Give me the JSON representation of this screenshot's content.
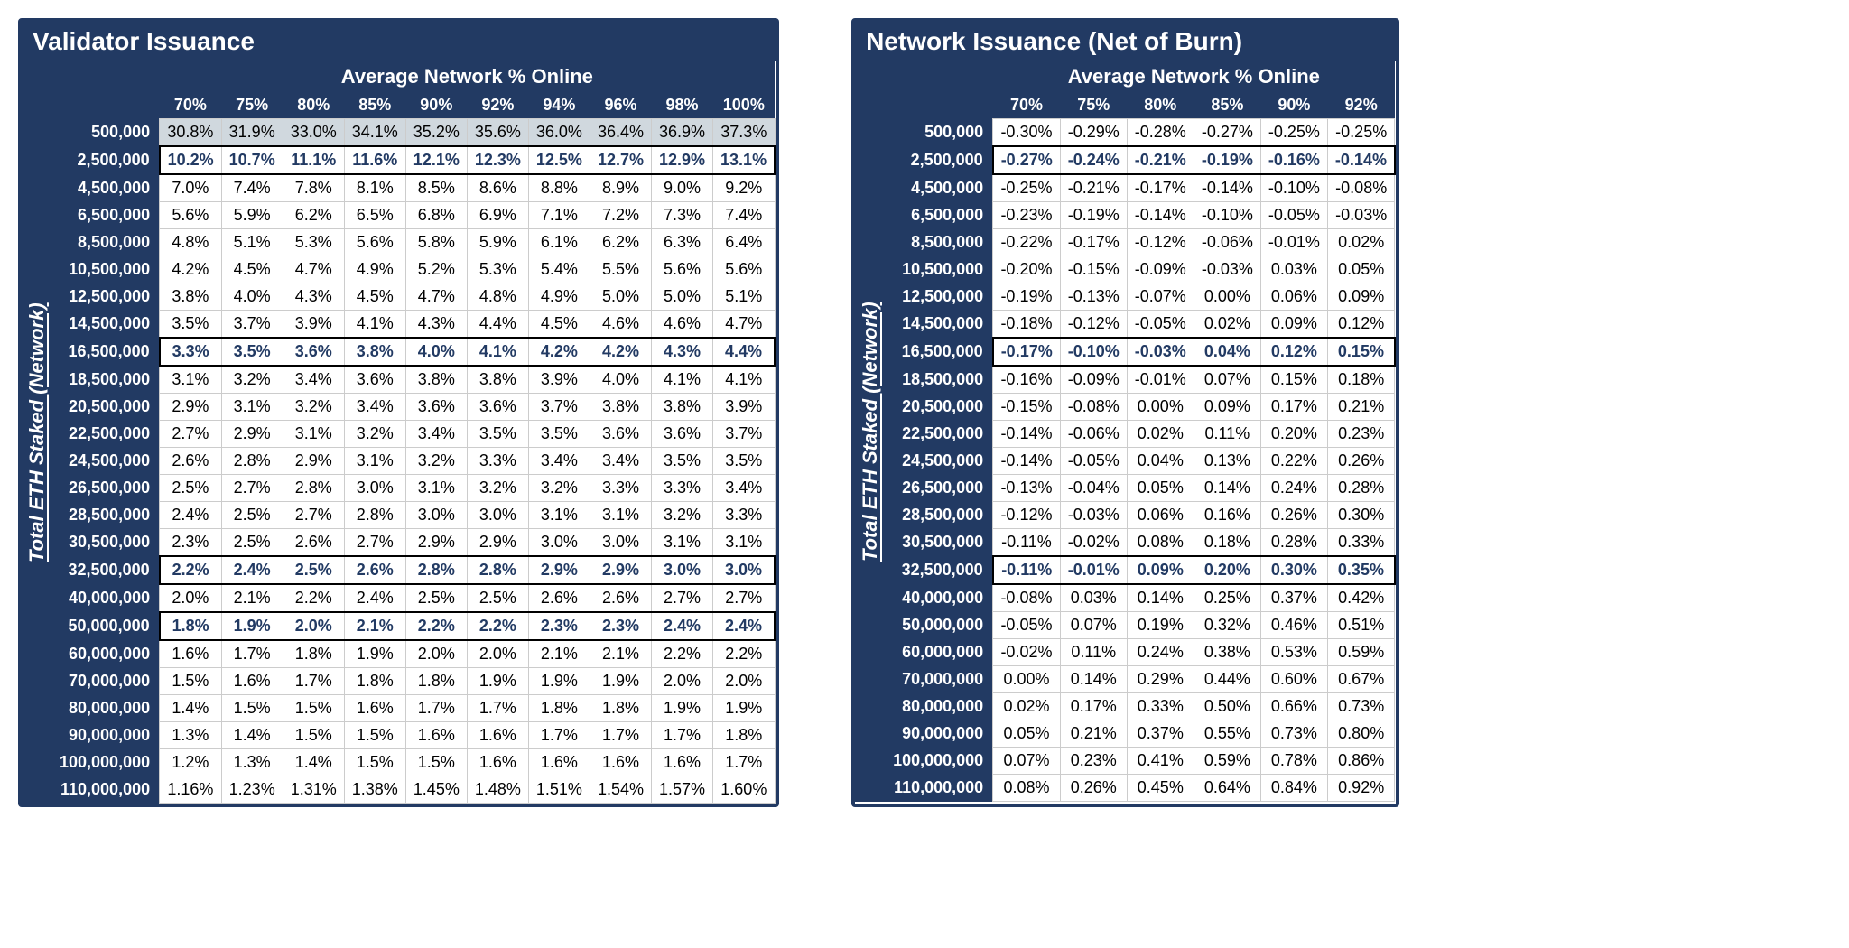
{
  "tables": [
    {
      "title": "Validator Issuance",
      "ylabel": "Total ETH Staked (Network)",
      "xlabel": "Average Network % Online",
      "x_headers": [
        "70%",
        "75%",
        "80%",
        "85%",
        "90%",
        "92%",
        "94%",
        "96%",
        "98%",
        "100%"
      ],
      "y_headers": [
        "500,000",
        "2,500,000",
        "4,500,000",
        "6,500,000",
        "8,500,000",
        "10,500,000",
        "12,500,000",
        "14,500,000",
        "16,500,000",
        "18,500,000",
        "20,500,000",
        "22,500,000",
        "24,500,000",
        "26,500,000",
        "28,500,000",
        "30,500,000",
        "32,500,000",
        "40,000,000",
        "50,000,000",
        "60,000,000",
        "70,000,000",
        "80,000,000",
        "90,000,000",
        "100,000,000",
        "110,000,000"
      ],
      "rows": [
        [
          "30.8%",
          "31.9%",
          "33.0%",
          "34.1%",
          "35.2%",
          "35.6%",
          "36.0%",
          "36.4%",
          "36.9%",
          "37.3%"
        ],
        [
          "10.2%",
          "10.7%",
          "11.1%",
          "11.6%",
          "12.1%",
          "12.3%",
          "12.5%",
          "12.7%",
          "12.9%",
          "13.1%"
        ],
        [
          "7.0%",
          "7.4%",
          "7.8%",
          "8.1%",
          "8.5%",
          "8.6%",
          "8.8%",
          "8.9%",
          "9.0%",
          "9.2%"
        ],
        [
          "5.6%",
          "5.9%",
          "6.2%",
          "6.5%",
          "6.8%",
          "6.9%",
          "7.1%",
          "7.2%",
          "7.3%",
          "7.4%"
        ],
        [
          "4.8%",
          "5.1%",
          "5.3%",
          "5.6%",
          "5.8%",
          "5.9%",
          "6.1%",
          "6.2%",
          "6.3%",
          "6.4%"
        ],
        [
          "4.2%",
          "4.5%",
          "4.7%",
          "4.9%",
          "5.2%",
          "5.3%",
          "5.4%",
          "5.5%",
          "5.6%",
          "5.6%"
        ],
        [
          "3.8%",
          "4.0%",
          "4.3%",
          "4.5%",
          "4.7%",
          "4.8%",
          "4.9%",
          "5.0%",
          "5.0%",
          "5.1%"
        ],
        [
          "3.5%",
          "3.7%",
          "3.9%",
          "4.1%",
          "4.3%",
          "4.4%",
          "4.5%",
          "4.6%",
          "4.6%",
          "4.7%"
        ],
        [
          "3.3%",
          "3.5%",
          "3.6%",
          "3.8%",
          "4.0%",
          "4.1%",
          "4.2%",
          "4.2%",
          "4.3%",
          "4.4%"
        ],
        [
          "3.1%",
          "3.2%",
          "3.4%",
          "3.6%",
          "3.8%",
          "3.8%",
          "3.9%",
          "4.0%",
          "4.1%",
          "4.1%"
        ],
        [
          "2.9%",
          "3.1%",
          "3.2%",
          "3.4%",
          "3.6%",
          "3.6%",
          "3.7%",
          "3.8%",
          "3.8%",
          "3.9%"
        ],
        [
          "2.7%",
          "2.9%",
          "3.1%",
          "3.2%",
          "3.4%",
          "3.5%",
          "3.5%",
          "3.6%",
          "3.6%",
          "3.7%"
        ],
        [
          "2.6%",
          "2.8%",
          "2.9%",
          "3.1%",
          "3.2%",
          "3.3%",
          "3.4%",
          "3.4%",
          "3.5%",
          "3.5%"
        ],
        [
          "2.5%",
          "2.7%",
          "2.8%",
          "3.0%",
          "3.1%",
          "3.2%",
          "3.2%",
          "3.3%",
          "3.3%",
          "3.4%"
        ],
        [
          "2.4%",
          "2.5%",
          "2.7%",
          "2.8%",
          "3.0%",
          "3.0%",
          "3.1%",
          "3.1%",
          "3.2%",
          "3.3%"
        ],
        [
          "2.3%",
          "2.5%",
          "2.6%",
          "2.7%",
          "2.9%",
          "2.9%",
          "3.0%",
          "3.0%",
          "3.1%",
          "3.1%"
        ],
        [
          "2.2%",
          "2.4%",
          "2.5%",
          "2.6%",
          "2.8%",
          "2.8%",
          "2.9%",
          "2.9%",
          "3.0%",
          "3.0%"
        ],
        [
          "2.0%",
          "2.1%",
          "2.2%",
          "2.4%",
          "2.5%",
          "2.5%",
          "2.6%",
          "2.6%",
          "2.7%",
          "2.7%"
        ],
        [
          "1.8%",
          "1.9%",
          "2.0%",
          "2.1%",
          "2.2%",
          "2.2%",
          "2.3%",
          "2.3%",
          "2.4%",
          "2.4%"
        ],
        [
          "1.6%",
          "1.7%",
          "1.8%",
          "1.9%",
          "2.0%",
          "2.0%",
          "2.1%",
          "2.1%",
          "2.2%",
          "2.2%"
        ],
        [
          "1.5%",
          "1.6%",
          "1.7%",
          "1.8%",
          "1.8%",
          "1.9%",
          "1.9%",
          "1.9%",
          "2.0%",
          "2.0%"
        ],
        [
          "1.4%",
          "1.5%",
          "1.5%",
          "1.6%",
          "1.7%",
          "1.7%",
          "1.8%",
          "1.8%",
          "1.9%",
          "1.9%"
        ],
        [
          "1.3%",
          "1.4%",
          "1.5%",
          "1.5%",
          "1.6%",
          "1.6%",
          "1.7%",
          "1.7%",
          "1.7%",
          "1.8%"
        ],
        [
          "1.2%",
          "1.3%",
          "1.4%",
          "1.5%",
          "1.5%",
          "1.6%",
          "1.6%",
          "1.6%",
          "1.6%",
          "1.7%"
        ],
        [
          "1.16%",
          "1.23%",
          "1.31%",
          "1.38%",
          "1.45%",
          "1.48%",
          "1.51%",
          "1.54%",
          "1.57%",
          "1.60%"
        ]
      ],
      "grey_rows": [
        0
      ],
      "bold_box_rows": [
        1,
        8,
        16,
        18
      ],
      "bold_top_border_after": [
        8,
        16,
        18
      ]
    },
    {
      "title": "Network Issuance (Net of Burn)",
      "ylabel": "Total ETH Staked (Network)",
      "xlabel": "Average Network % Online",
      "x_headers": [
        "70%",
        "75%",
        "80%",
        "85%",
        "90%",
        "92%"
      ],
      "y_headers": [
        "500,000",
        "2,500,000",
        "4,500,000",
        "6,500,000",
        "8,500,000",
        "10,500,000",
        "12,500,000",
        "14,500,000",
        "16,500,000",
        "18,500,000",
        "20,500,000",
        "22,500,000",
        "24,500,000",
        "26,500,000",
        "28,500,000",
        "30,500,000",
        "32,500,000",
        "40,000,000",
        "50,000,000",
        "60,000,000",
        "70,000,000",
        "80,000,000",
        "90,000,000",
        "100,000,000",
        "110,000,000"
      ],
      "rows": [
        [
          "-0.30%",
          "-0.29%",
          "-0.28%",
          "-0.27%",
          "-0.25%",
          "-0.25%"
        ],
        [
          "-0.27%",
          "-0.24%",
          "-0.21%",
          "-0.19%",
          "-0.16%",
          "-0.14%"
        ],
        [
          "-0.25%",
          "-0.21%",
          "-0.17%",
          "-0.14%",
          "-0.10%",
          "-0.08%"
        ],
        [
          "-0.23%",
          "-0.19%",
          "-0.14%",
          "-0.10%",
          "-0.05%",
          "-0.03%"
        ],
        [
          "-0.22%",
          "-0.17%",
          "-0.12%",
          "-0.06%",
          "-0.01%",
          "0.02%"
        ],
        [
          "-0.20%",
          "-0.15%",
          "-0.09%",
          "-0.03%",
          "0.03%",
          "0.05%"
        ],
        [
          "-0.19%",
          "-0.13%",
          "-0.07%",
          "0.00%",
          "0.06%",
          "0.09%"
        ],
        [
          "-0.18%",
          "-0.12%",
          "-0.05%",
          "0.02%",
          "0.09%",
          "0.12%"
        ],
        [
          "-0.17%",
          "-0.10%",
          "-0.03%",
          "0.04%",
          "0.12%",
          "0.15%"
        ],
        [
          "-0.16%",
          "-0.09%",
          "-0.01%",
          "0.07%",
          "0.15%",
          "0.18%"
        ],
        [
          "-0.15%",
          "-0.08%",
          "0.00%",
          "0.09%",
          "0.17%",
          "0.21%"
        ],
        [
          "-0.14%",
          "-0.06%",
          "0.02%",
          "0.11%",
          "0.20%",
          "0.23%"
        ],
        [
          "-0.14%",
          "-0.05%",
          "0.04%",
          "0.13%",
          "0.22%",
          "0.26%"
        ],
        [
          "-0.13%",
          "-0.04%",
          "0.05%",
          "0.14%",
          "0.24%",
          "0.28%"
        ],
        [
          "-0.12%",
          "-0.03%",
          "0.06%",
          "0.16%",
          "0.26%",
          "0.30%"
        ],
        [
          "-0.11%",
          "-0.02%",
          "0.08%",
          "0.18%",
          "0.28%",
          "0.33%"
        ],
        [
          "-0.11%",
          "-0.01%",
          "0.09%",
          "0.20%",
          "0.30%",
          "0.35%"
        ],
        [
          "-0.08%",
          "0.03%",
          "0.14%",
          "0.25%",
          "0.37%",
          "0.42%"
        ],
        [
          "-0.05%",
          "0.07%",
          "0.19%",
          "0.32%",
          "0.46%",
          "0.51%"
        ],
        [
          "-0.02%",
          "0.11%",
          "0.24%",
          "0.38%",
          "0.53%",
          "0.59%"
        ],
        [
          "0.00%",
          "0.14%",
          "0.29%",
          "0.44%",
          "0.60%",
          "0.67%"
        ],
        [
          "0.02%",
          "0.17%",
          "0.33%",
          "0.50%",
          "0.66%",
          "0.73%"
        ],
        [
          "0.05%",
          "0.21%",
          "0.37%",
          "0.55%",
          "0.73%",
          "0.80%"
        ],
        [
          "0.07%",
          "0.23%",
          "0.41%",
          "0.59%",
          "0.78%",
          "0.86%"
        ],
        [
          "0.08%",
          "0.26%",
          "0.45%",
          "0.64%",
          "0.84%",
          "0.92%"
        ]
      ],
      "grey_rows": [],
      "bold_box_rows": [
        1,
        8,
        16
      ],
      "bold_top_border_after": [
        8,
        16
      ]
    }
  ],
  "colors": {
    "panel_bg": "#223a63",
    "panel_fg": "#ffffff",
    "cell_border": "#cccccc",
    "grey_fill": "#d0d8de",
    "bold_text": "#223a63"
  },
  "fontsize": {
    "title": 28,
    "header": 18,
    "cell": 18,
    "ylabel": 22,
    "xlabel": 22
  }
}
